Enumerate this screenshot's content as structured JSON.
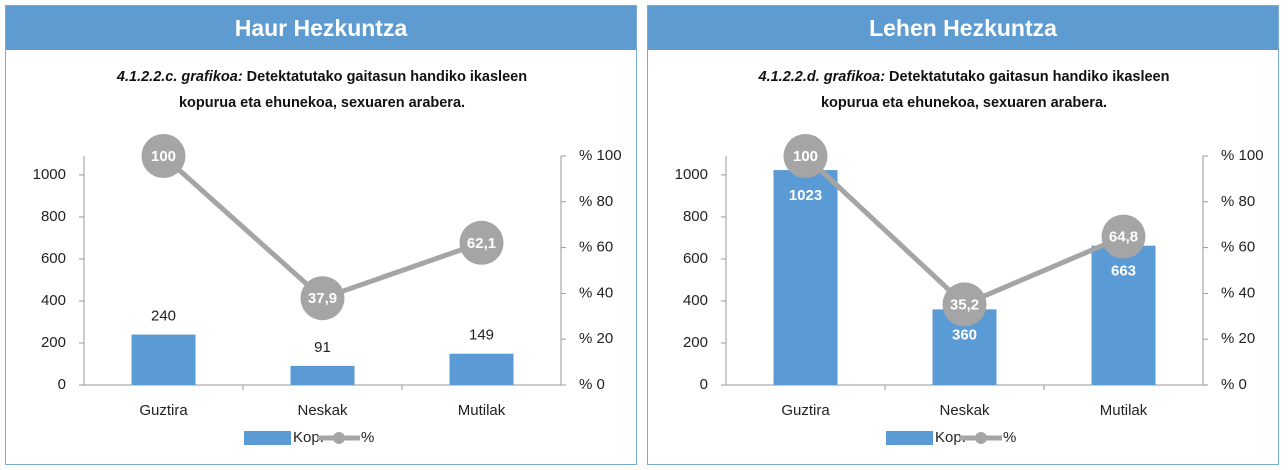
{
  "chart_data": [
    {
      "type": "bar",
      "title": "Haur Hezkuntza",
      "figure_label": "4.1.2.2.c. grafikoa:",
      "subtitle": "Detektatutako gaitasun handiko ikasleen kopurua eta ehunekoa, sexuaren arabera.",
      "categories": [
        "Guztira",
        "Neskak",
        "Mutilak"
      ],
      "series": [
        {
          "name": "Kop.",
          "color": "#5b9bd5",
          "values": [
            240,
            91,
            149
          ]
        },
        {
          "name": "%",
          "color": "#a5a5a5",
          "axis": "y2",
          "values": [
            100,
            37.9,
            62.1
          ],
          "value_labels": [
            "100",
            "37,9",
            "62,1"
          ]
        }
      ],
      "bar_label_position": "outside",
      "ylim": [
        0,
        1090
      ],
      "yticks": [
        0,
        200,
        400,
        600,
        800,
        1000
      ],
      "y2lim": [
        0,
        100
      ],
      "y2ticks": [
        {
          "value": 0,
          "label": "% 0"
        },
        {
          "value": 20,
          "label": "% 20"
        },
        {
          "value": 40,
          "label": "% 40"
        },
        {
          "value": 60,
          "label": "% 60"
        },
        {
          "value": 80,
          "label": "% 80"
        },
        {
          "value": 100,
          "label": "% 100"
        }
      ],
      "legend": "bottom"
    },
    {
      "type": "bar",
      "title": "Lehen Hezkuntza",
      "figure_label": "4.1.2.2.d. grafikoa:",
      "subtitle": "Detektatutako gaitasun handiko ikasleen kopurua eta ehunekoa, sexuaren arabera.",
      "categories": [
        "Guztira",
        "Neskak",
        "Mutilak"
      ],
      "series": [
        {
          "name": "Kop.",
          "color": "#5b9bd5",
          "values": [
            1023,
            360,
            663
          ]
        },
        {
          "name": "%",
          "color": "#a5a5a5",
          "axis": "y2",
          "values": [
            100,
            35.2,
            64.8
          ],
          "value_labels": [
            "100",
            "35,2",
            "64,8"
          ]
        }
      ],
      "bar_label_position": "inside",
      "ylim": [
        0,
        1090
      ],
      "yticks": [
        0,
        200,
        400,
        600,
        800,
        1000
      ],
      "y2lim": [
        0,
        100
      ],
      "y2ticks": [
        {
          "value": 0,
          "label": "% 0"
        },
        {
          "value": 20,
          "label": "% 20"
        },
        {
          "value": 40,
          "label": "% 40"
        },
        {
          "value": 60,
          "label": "% 60"
        },
        {
          "value": 80,
          "label": "% 80"
        },
        {
          "value": 100,
          "label": "% 100"
        }
      ],
      "legend": "bottom"
    }
  ]
}
